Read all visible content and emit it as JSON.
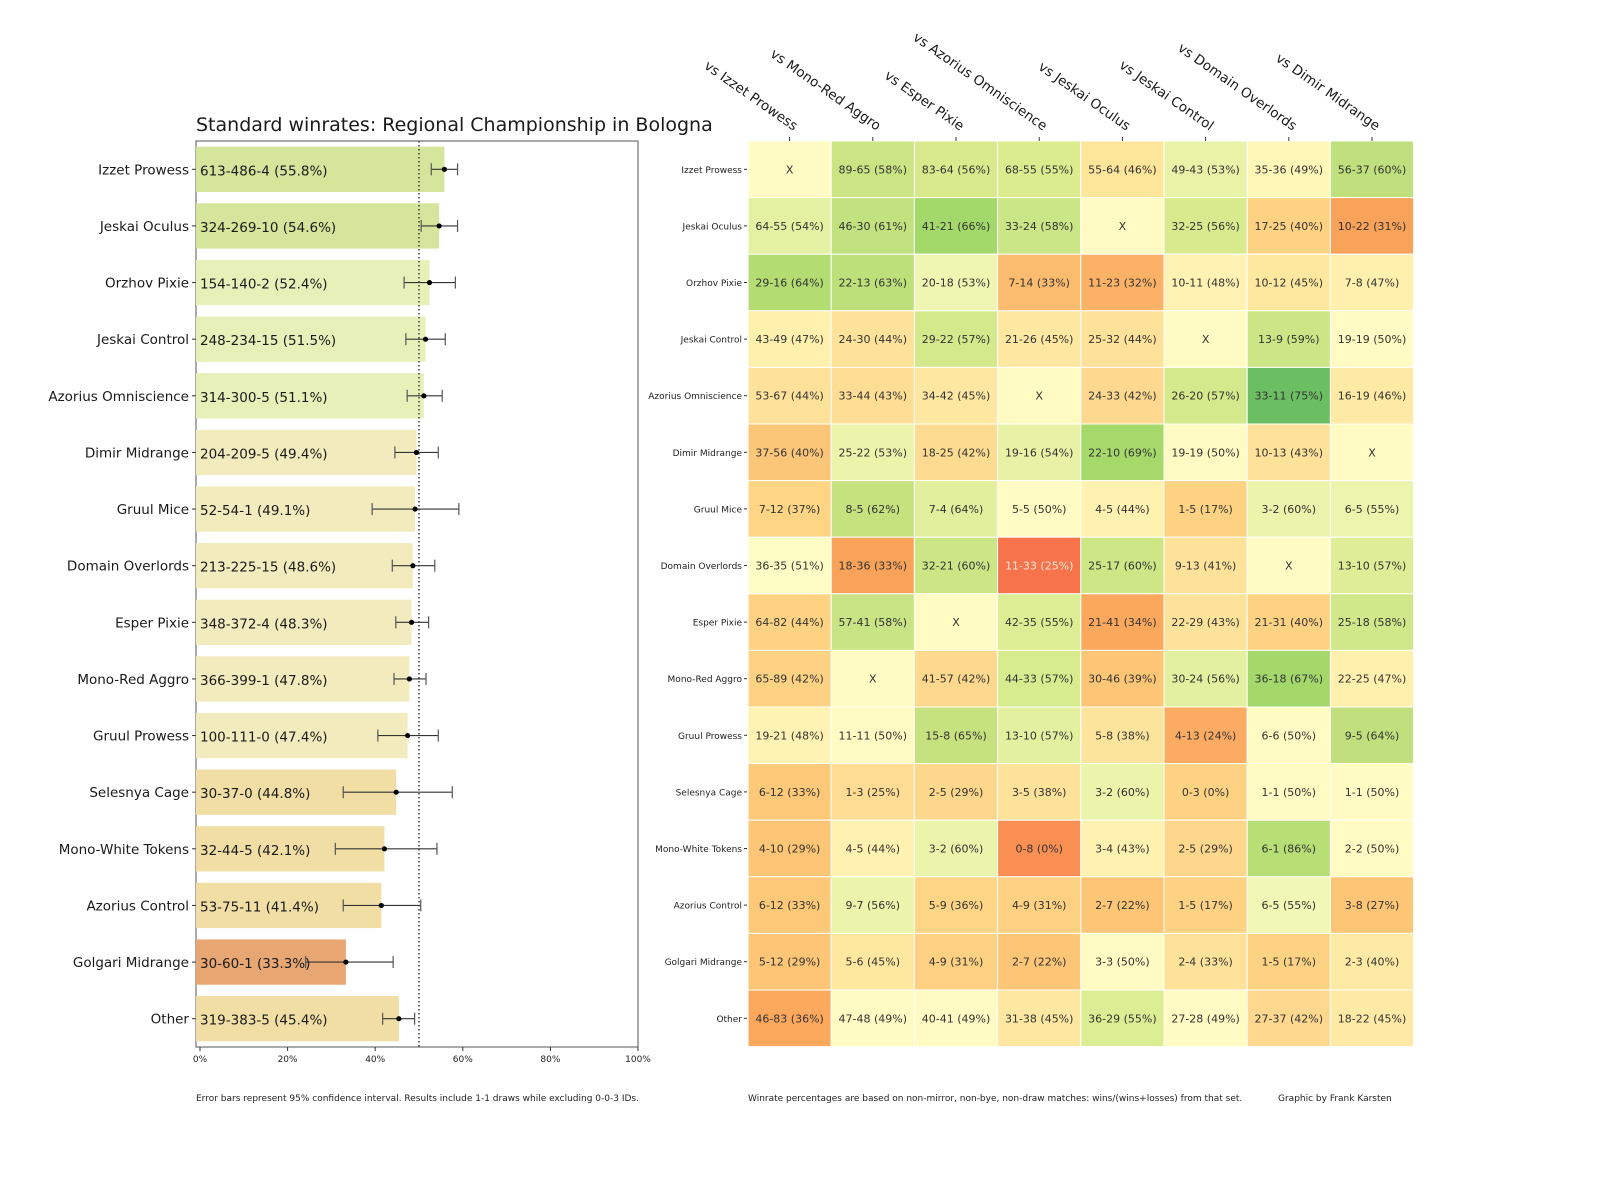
{
  "chart_data": [
    {
      "type": "bar",
      "orientation": "horizontal",
      "title": "Standard winrates: Regional Championship in Bologna",
      "xlabel": "",
      "ylabel": "",
      "xlim": [
        0,
        100
      ],
      "x_tick_labels": [
        "0%",
        "20%",
        "40%",
        "60%",
        "80%",
        "100%"
      ],
      "x_ticks": [
        0,
        20,
        40,
        60,
        80,
        100
      ],
      "reference_line": 50,
      "grid": false,
      "categories": [
        "Izzet Prowess",
        "Jeskai Oculus",
        "Orzhov Pixie",
        "Jeskai Control",
        "Azorius Omniscience",
        "Dimir Midrange",
        "Gruul Mice",
        "Domain Overlords",
        "Esper Pixie",
        "Mono-Red Aggro",
        "Gruul Prowess",
        "Selesnya Cage",
        "Mono-White Tokens",
        "Azorius Control",
        "Golgari Midrange",
        "Other"
      ],
      "records": [
        "613-486-4",
        "324-269-10",
        "154-140-2",
        "248-234-15",
        "314-300-5",
        "204-209-5",
        "52-54-1",
        "213-225-15",
        "348-372-4",
        "366-399-1",
        "100-111-0",
        "30-37-0",
        "32-44-5",
        "53-75-11",
        "30-60-1",
        "319-383-5"
      ],
      "values": [
        55.8,
        54.6,
        52.4,
        51.5,
        51.1,
        49.4,
        49.1,
        48.6,
        48.3,
        47.8,
        47.4,
        44.8,
        42.1,
        41.4,
        33.3,
        45.4
      ],
      "ci_low": [
        52.8,
        50.5,
        46.6,
        47.0,
        47.3,
        44.5,
        39.3,
        43.9,
        44.7,
        44.3,
        40.6,
        32.7,
        30.9,
        32.7,
        24.1,
        41.7
      ],
      "ci_high": [
        58.8,
        58.8,
        58.3,
        56.0,
        55.3,
        54.4,
        59.1,
        53.6,
        52.2,
        51.6,
        54.4,
        57.6,
        54.1,
        50.4,
        44.1,
        49.0
      ],
      "bar_colors": [
        "#d5e59c",
        "#d5e59c",
        "#e8f0b9",
        "#e8f0b9",
        "#e8f0b9",
        "#f2ebbd",
        "#f2ebbd",
        "#f2ebbd",
        "#f2ebbd",
        "#f2ebbd",
        "#f2ebbd",
        "#f0dea4",
        "#f0dea4",
        "#f0dea4",
        "#e8a772",
        "#f0dea4"
      ],
      "footnote": "Error bars represent 95% confidence interval. Results include 1-1 draws while excluding 0-0-3 IDs."
    },
    {
      "type": "heatmap",
      "title": "",
      "row_labels": [
        "Izzet Prowess",
        "Jeskai Oculus",
        "Orzhov Pixie",
        "Jeskai Control",
        "Azorius Omniscience",
        "Dimir Midrange",
        "Gruul Mice",
        "Domain Overlords",
        "Esper Pixie",
        "Mono-Red Aggro",
        "Gruul Prowess",
        "Selesnya Cage",
        "Mono-White Tokens",
        "Azorius Control",
        "Golgari Midrange",
        "Other"
      ],
      "col_labels": [
        "vs Izzet Prowess",
        "vs Mono-Red Aggro",
        "vs Esper Pixie",
        "vs Azorius Omniscience",
        "vs Jeskai Oculus",
        "vs Jeskai Control",
        "vs Domain Overlords",
        "vs Dimir Midrange"
      ],
      "cells": [
        [
          "X",
          "89-65 (58%)",
          "83-64 (56%)",
          "68-55 (55%)",
          "55-64 (46%)",
          "49-43 (53%)",
          "35-36 (49%)",
          "56-37 (60%)"
        ],
        [
          "64-55 (54%)",
          "46-30 (61%)",
          "41-21 (66%)",
          "33-24 (58%)",
          "X",
          "32-25 (56%)",
          "17-25 (40%)",
          "10-22 (31%)"
        ],
        [
          "29-16 (64%)",
          "22-13 (63%)",
          "20-18 (53%)",
          "7-14 (33%)",
          "11-23 (32%)",
          "10-11 (48%)",
          "10-12 (45%)",
          "7-8 (47%)"
        ],
        [
          "43-49 (47%)",
          "24-30 (44%)",
          "29-22 (57%)",
          "21-26 (45%)",
          "25-32 (44%)",
          "X",
          "13-9 (59%)",
          "19-19 (50%)"
        ],
        [
          "53-67 (44%)",
          "33-44 (43%)",
          "34-42 (45%)",
          "X",
          "24-33 (42%)",
          "26-20 (57%)",
          "33-11 (75%)",
          "16-19 (46%)"
        ],
        [
          "37-56 (40%)",
          "25-22 (53%)",
          "18-25 (42%)",
          "19-16 (54%)",
          "22-10 (69%)",
          "19-19 (50%)",
          "10-13 (43%)",
          "X"
        ],
        [
          "7-12 (37%)",
          "8-5 (62%)",
          "7-4 (64%)",
          "5-5 (50%)",
          "4-5 (44%)",
          "1-5 (17%)",
          "3-2 (60%)",
          "6-5 (55%)"
        ],
        [
          "36-35 (51%)",
          "18-36 (33%)",
          "32-21 (60%)",
          "11-33 (25%)",
          "25-17 (60%)",
          "9-13 (41%)",
          "X",
          "13-10 (57%)"
        ],
        [
          "64-82 (44%)",
          "57-41 (58%)",
          "X",
          "42-35 (55%)",
          "21-41 (34%)",
          "22-29 (43%)",
          "21-31 (40%)",
          "25-18 (58%)"
        ],
        [
          "65-89 (42%)",
          "X",
          "41-57 (42%)",
          "44-33 (57%)",
          "30-46 (39%)",
          "30-24 (56%)",
          "36-18 (67%)",
          "22-25 (47%)"
        ],
        [
          "19-21 (48%)",
          "11-11 (50%)",
          "15-8 (65%)",
          "13-10 (57%)",
          "5-8 (38%)",
          "4-13 (24%)",
          "6-6 (50%)",
          "9-5 (64%)"
        ],
        [
          "6-12 (33%)",
          "1-3 (25%)",
          "2-5 (29%)",
          "3-5 (38%)",
          "3-2 (60%)",
          "0-3 (0%)",
          "1-1 (50%)",
          "1-1 (50%)"
        ],
        [
          "4-10 (29%)",
          "4-5 (44%)",
          "3-2 (60%)",
          "0-8 (0%)",
          "3-4 (43%)",
          "2-5 (29%)",
          "6-1 (86%)",
          "2-2 (50%)"
        ],
        [
          "6-12 (33%)",
          "9-7 (56%)",
          "5-9 (36%)",
          "4-9 (31%)",
          "2-7 (22%)",
          "1-5 (17%)",
          "6-5 (55%)",
          "3-8 (27%)"
        ],
        [
          "5-12 (29%)",
          "5-6 (45%)",
          "4-9 (31%)",
          "2-7 (22%)",
          "3-3 (50%)",
          "2-4 (33%)",
          "1-5 (17%)",
          "2-3 (40%)"
        ],
        [
          "46-83 (36%)",
          "47-48 (49%)",
          "40-41 (49%)",
          "31-38 (45%)",
          "36-29 (55%)",
          "27-28 (49%)",
          "27-37 (42%)",
          "18-22 (45%)"
        ]
      ],
      "cell_colors": [
        [
          "#fffbc2",
          "#cbe585",
          "#d8ea8c",
          "#dbec8f",
          "#fde59a",
          "#e9f3a7",
          "#fef7b8",
          "#bfe07c"
        ],
        [
          "#e5f1a2",
          "#c2e17f",
          "#a3d86a",
          "#cbe686",
          "#fffbc2",
          "#d7ea8e",
          "#fdd383",
          "#f9a25a"
        ],
        [
          "#b3dc72",
          "#bde07a",
          "#eef6b1",
          "#fcbc6f",
          "#fbb266",
          "#fff2b2",
          "#fee8a0",
          "#fff0ad"
        ],
        [
          "#fff0ad",
          "#fee29a",
          "#d3e98b",
          "#fee7a0",
          "#fee29a",
          "#fffbc2",
          "#cce686",
          "#fffbc2"
        ],
        [
          "#fee29a",
          "#fedd94",
          "#fee7a0",
          "#fffbc2",
          "#fdd88e",
          "#d3e98b",
          "#6cbe62",
          "#feeaa4"
        ],
        [
          "#fcc679",
          "#eaf4aa",
          "#fddc92",
          "#e7f2a6",
          "#a5d96a",
          "#fffbc2",
          "#fee29a",
          "#fffbc2"
        ],
        [
          "#fdd585",
          "#c5e27f",
          "#e2ef9c",
          "#fffbc2",
          "#fff1b0",
          "#fdd282",
          "#eaf4aa",
          "#ecf5ad"
        ],
        [
          "#fdfcc4",
          "#f9a35a",
          "#cce686",
          "#f6734b",
          "#cde787",
          "#fee29a",
          "#fffbc2",
          "#dfee96"
        ],
        [
          "#fdd383",
          "#c9e484",
          "#fffbc2",
          "#dcee93",
          "#fba85c",
          "#fde29a",
          "#fdd383",
          "#d0e88a"
        ],
        [
          "#fdd383",
          "#fffbc2",
          "#fdd88d",
          "#d6ec8e",
          "#fdc576",
          "#e3f0a0",
          "#a4d86b",
          "#fff0ad"
        ],
        [
          "#fff3b3",
          "#fffbc2",
          "#c5e27f",
          "#e3f0a0",
          "#fde49c",
          "#fbac62",
          "#fffbc2",
          "#c1e07d"
        ],
        [
          "#fdc978",
          "#fedc93",
          "#fdd88c",
          "#fee29a",
          "#eaf4aa",
          "#fdd383",
          "#fffbc2",
          "#fffbc2"
        ],
        [
          "#fdc576",
          "#fff1b0",
          "#eaf4aa",
          "#f98f53",
          "#fff1b0",
          "#fdd88c",
          "#b8df76",
          "#fffbc2"
        ],
        [
          "#fdc978",
          "#ebf4ab",
          "#fdd585",
          "#fdd082",
          "#fdc576",
          "#fdd282",
          "#f1f7b4",
          "#fdc576"
        ],
        [
          "#fdc576",
          "#fee8a0",
          "#fdd082",
          "#fdc576",
          "#fffbc2",
          "#fee29a",
          "#fdd282",
          "#feeaa4"
        ],
        [
          "#fca85d",
          "#fffbc2",
          "#fffbc2",
          "#fee7a0",
          "#dcee93",
          "#fffbc2",
          "#fdd88e",
          "#feeaa4"
        ]
      ],
      "light_text_cells": [
        [
          7,
          3
        ]
      ],
      "footnote": "Winrate percentages are based on non-mirror, non-bye, non-draw matches: wins/(wins+losses) from that set.",
      "credit": "Graphic by Frank Karsten"
    }
  ]
}
